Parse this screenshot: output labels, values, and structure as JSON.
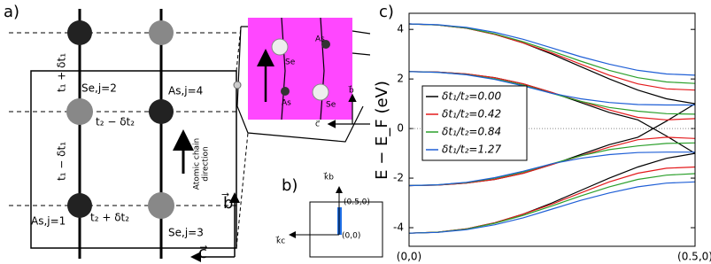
{
  "panel_a": {
    "label": "a)",
    "sites": [
      "Se,j=2",
      "As,j=4",
      "As,j=1",
      "Se,j=3"
    ],
    "hoppings": [
      "t₁ + δt₁",
      "t₂ − δt₂",
      "t₁ − δt₁",
      "t₂ + δt₂"
    ],
    "direction": [
      "Atomic chain",
      "direction"
    ],
    "vector_b": "b⃗",
    "vector_c": "c⃗",
    "inset": {
      "atoms": [
        "As",
        "Se",
        "As",
        "Se"
      ],
      "vector_b": "b⃗",
      "vector_c": "c⃗"
    }
  },
  "panel_b": {
    "label": "b)",
    "kb": "k⃗b",
    "kc": "k⃗c",
    "point_top": "(0.5,0)",
    "point_origin": "(0,0)"
  },
  "chart_data": {
    "type": "line",
    "label": "c)",
    "ylabel": "E − E_F (eV)",
    "x": [
      0,
      0.05,
      0.1,
      0.15,
      0.2,
      0.25,
      0.3,
      0.35,
      0.4,
      0.45,
      0.5
    ],
    "xlim": [
      0,
      0.5
    ],
    "xticks": [
      {
        "value": 0,
        "label": "(0,0)"
      },
      {
        "value": 0.5,
        "label": "(0.5,0)"
      }
    ],
    "ylim": [
      -4.75,
      4.65
    ],
    "yticks": [
      -4,
      -2,
      0,
      2,
      4
    ],
    "zero_line": true,
    "legend": "left",
    "series": [
      {
        "name": "δt₁/t₂=0.00",
        "color": "#000000",
        "bands": [
          [
            4.22,
            4.18,
            4.05,
            3.8,
            3.45,
            3.0,
            2.5,
            2.0,
            1.55,
            1.2,
            1.0
          ],
          [
            2.3,
            2.28,
            2.2,
            2.05,
            1.8,
            1.45,
            1.05,
            0.65,
            0.35,
            -0.3,
            -1.0
          ],
          [
            -2.3,
            -2.28,
            -2.2,
            -2.05,
            -1.8,
            -1.45,
            -1.05,
            -0.65,
            -0.35,
            0.3,
            1.0
          ],
          [
            -4.22,
            -4.18,
            -4.05,
            -3.8,
            -3.45,
            -3.0,
            -2.5,
            -2.0,
            -1.55,
            -1.2,
            -1.0
          ]
        ]
      },
      {
        "name": "δt₁/t₂=0.42",
        "color": "#e41a1c",
        "bands": [
          [
            4.22,
            4.18,
            4.05,
            3.8,
            3.45,
            3.05,
            2.6,
            2.15,
            1.8,
            1.6,
            1.55
          ],
          [
            2.3,
            2.28,
            2.2,
            2.05,
            1.8,
            1.45,
            1.1,
            0.75,
            0.45,
            0.35,
            0.4
          ],
          [
            -2.3,
            -2.28,
            -2.2,
            -2.05,
            -1.8,
            -1.45,
            -1.1,
            -0.75,
            -0.45,
            -0.35,
            -0.4
          ],
          [
            -4.22,
            -4.18,
            -4.05,
            -3.8,
            -3.45,
            -3.05,
            -2.6,
            -2.15,
            -1.8,
            -1.6,
            -1.55
          ]
        ]
      },
      {
        "name": "δt₁/t₂=0.84",
        "color": "#2ca02c",
        "bands": [
          [
            4.22,
            4.18,
            4.06,
            3.82,
            3.5,
            3.12,
            2.72,
            2.35,
            2.05,
            1.88,
            1.82
          ],
          [
            2.3,
            2.27,
            2.18,
            2.0,
            1.75,
            1.42,
            1.1,
            0.85,
            0.7,
            0.6,
            0.58
          ],
          [
            -2.3,
            -2.27,
            -2.18,
            -2.0,
            -1.75,
            -1.42,
            -1.1,
            -0.85,
            -0.7,
            -0.6,
            -0.58
          ],
          [
            -4.22,
            -4.18,
            -4.06,
            -3.82,
            -3.5,
            -3.12,
            -2.72,
            -2.35,
            -2.05,
            -1.88,
            -1.82
          ]
        ]
      },
      {
        "name": "δt₁/t₂=1.27",
        "color": "#1f5fd6",
        "bands": [
          [
            4.22,
            4.19,
            4.08,
            3.88,
            3.6,
            3.25,
            2.9,
            2.6,
            2.35,
            2.2,
            2.15
          ],
          [
            2.3,
            2.27,
            2.17,
            1.98,
            1.72,
            1.42,
            1.2,
            1.05,
            0.97,
            0.95,
            0.95
          ],
          [
            -2.3,
            -2.27,
            -2.17,
            -1.98,
            -1.72,
            -1.42,
            -1.2,
            -1.05,
            -0.97,
            -0.95,
            -0.95
          ],
          [
            -4.22,
            -4.19,
            -4.08,
            -3.88,
            -3.6,
            -3.25,
            -2.9,
            -2.6,
            -2.35,
            -2.2,
            -2.15
          ]
        ]
      }
    ]
  }
}
